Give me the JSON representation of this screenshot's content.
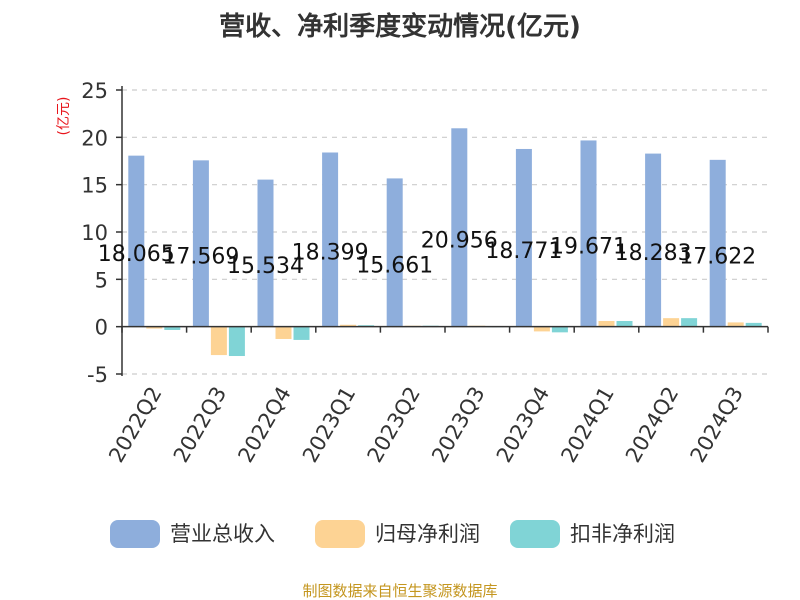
{
  "chart_data": {
    "type": "bar",
    "title": "营收、净利季度变动情况(亿元)",
    "ylabel": "(亿元)",
    "xlabel": "",
    "ylim": [
      -5,
      25
    ],
    "yticks": [
      "25",
      "20",
      "15",
      "10",
      "5",
      "0",
      "-5"
    ],
    "grid": true,
    "legend_position": "bottom",
    "categories": [
      "2022Q2",
      "2022Q3",
      "2022Q4",
      "2023Q1",
      "2023Q2",
      "2023Q3",
      "2023Q4",
      "2024Q1",
      "2024Q2",
      "2024Q3"
    ],
    "series": [
      {
        "name": "营业总收入",
        "color": "#8eaedc",
        "values": [
          18.065,
          17.569,
          15.534,
          18.399,
          15.661,
          20.956,
          18.771,
          19.671,
          18.283,
          17.622
        ],
        "labels": [
          "18.065",
          "17.569",
          "15.534",
          "18.399",
          "15.661",
          "20.956",
          "18.771",
          "19.671",
          "18.283",
          "17.622"
        ]
      },
      {
        "name": "归母净利润",
        "color": "#fdd394",
        "values": [
          -0.2,
          -3.0,
          -1.3,
          0.2,
          0.1,
          0.1,
          -0.5,
          0.6,
          0.9,
          0.45
        ]
      },
      {
        "name": "扣非净利润",
        "color": "#80d4d6",
        "values": [
          -0.35,
          -3.1,
          -1.4,
          0.15,
          0.1,
          0.05,
          -0.6,
          0.6,
          0.9,
          0.4
        ]
      }
    ],
    "source": "制图数据来自恒生聚源数据库"
  }
}
